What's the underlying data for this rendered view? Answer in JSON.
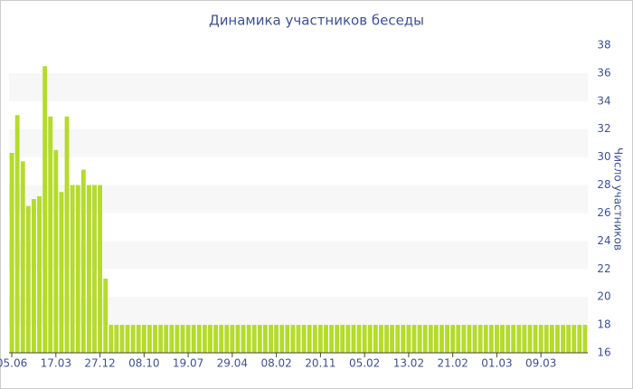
{
  "chart_data": {
    "type": "bar",
    "title": "Динамика участников беседы",
    "y_axis_label": "Число участников",
    "y_axis_side": "right",
    "grid": true,
    "color": "#b5db2b",
    "ylim": [
      16,
      38
    ],
    "yticks": [
      16,
      18,
      20,
      22,
      24,
      26,
      28,
      30,
      32,
      34,
      36,
      38
    ],
    "categories": [
      "05.06",
      null,
      null,
      null,
      null,
      null,
      null,
      null,
      "17.03",
      null,
      null,
      null,
      null,
      null,
      null,
      null,
      "27.12",
      null,
      null,
      null,
      null,
      null,
      null,
      null,
      "08.10",
      null,
      null,
      null,
      null,
      null,
      null,
      null,
      "19.07",
      null,
      null,
      null,
      null,
      null,
      null,
      null,
      "29.04",
      null,
      null,
      null,
      null,
      null,
      null,
      null,
      "08.02",
      null,
      null,
      null,
      null,
      null,
      null,
      null,
      "20.11",
      null,
      null,
      null,
      null,
      null,
      null,
      null,
      "05.02",
      null,
      null,
      null,
      null,
      null,
      null,
      null,
      "13.02",
      null,
      null,
      null,
      null,
      null,
      null,
      null,
      "21.02",
      null,
      null,
      null,
      null,
      null,
      null,
      null,
      "01.03",
      null,
      null,
      null,
      null,
      null,
      null,
      null,
      "09.03",
      null,
      null,
      null,
      null,
      null,
      null,
      null,
      null
    ],
    "values": [
      30.3,
      33,
      29.7,
      26.5,
      27,
      27.2,
      36.5,
      32.9,
      30.5,
      27.5,
      32.9,
      28,
      28,
      29.1,
      28,
      28,
      28,
      21.3,
      18,
      18,
      18,
      18,
      18,
      18,
      18,
      18,
      18,
      18,
      18,
      18,
      18,
      18,
      18,
      18,
      18,
      18,
      18,
      18,
      18,
      18,
      18,
      18,
      18,
      18,
      18,
      18,
      18,
      18,
      18,
      18,
      18,
      18,
      18,
      18,
      18,
      18,
      18,
      18,
      18,
      18,
      18,
      18,
      18,
      18,
      18,
      18,
      18,
      18,
      18,
      18,
      18,
      18,
      18,
      18,
      18,
      18,
      18,
      18,
      18,
      18,
      18,
      18,
      18,
      18,
      18,
      18,
      18,
      18,
      18,
      18,
      18,
      18,
      18,
      18,
      18,
      18,
      18,
      18,
      18,
      18,
      18,
      18,
      18,
      18,
      18
    ]
  }
}
